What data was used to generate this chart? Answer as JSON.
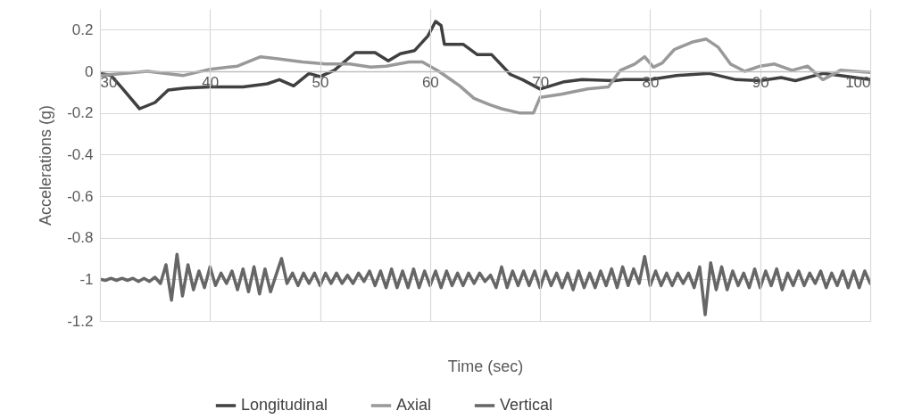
{
  "chart_data": {
    "type": "line",
    "xlabel": "Time (sec)",
    "ylabel": "Accelerations (g)",
    "xlim": [
      30,
      100
    ],
    "xticks": [
      30,
      40,
      50,
      60,
      70,
      80,
      90,
      100
    ],
    "ylim": [
      -1.2,
      0.3
    ],
    "yticks": [
      -1.2,
      -1,
      -0.8,
      -0.6,
      -0.4,
      -0.2,
      0,
      0.2
    ],
    "grid": true,
    "legend": "bottom",
    "series": [
      {
        "name": "Longitudinal",
        "color": "#404040",
        "x": [
          30,
          31,
          32,
          33.6,
          35,
          36.2,
          37.8,
          40,
          43,
          45.2,
          46.3,
          47.6,
          49,
          50,
          51.3,
          53.2,
          55,
          56.2,
          57.3,
          58.6,
          59.8,
          60.5,
          61,
          61.3,
          63,
          64.3,
          65.6,
          67.3,
          68.4,
          70,
          72.2,
          73.8,
          76.8,
          77.6,
          80,
          82.4,
          85.4,
          87.8,
          90,
          91.9,
          93.2,
          95.7,
          97.3,
          100
        ],
        "values": [
          -0.01,
          -0.02,
          -0.08,
          -0.18,
          -0.15,
          -0.09,
          -0.08,
          -0.075,
          -0.075,
          -0.06,
          -0.04,
          -0.07,
          -0.01,
          -0.025,
          0.005,
          0.09,
          0.09,
          0.05,
          0.085,
          0.1,
          0.17,
          0.24,
          0.22,
          0.13,
          0.13,
          0.08,
          0.08,
          -0.015,
          -0.04,
          -0.085,
          -0.05,
          -0.04,
          -0.045,
          -0.04,
          -0.04,
          -0.02,
          -0.01,
          -0.04,
          -0.045,
          -0.03,
          -0.045,
          -0.01,
          -0.02,
          -0.04
        ]
      },
      {
        "name": "Axial",
        "color": "#999999",
        "x": [
          30,
          34.3,
          37.6,
          40,
          42.5,
          44.6,
          46.2,
          48.4,
          50.5,
          52.7,
          54.6,
          56,
          58.1,
          59.3,
          60.8,
          62.7,
          64,
          65.4,
          66.5,
          68.1,
          69.4,
          70,
          71.9,
          74.3,
          76.2,
          77.3,
          78.6,
          79.5,
          80.3,
          81.1,
          82.2,
          83.8,
          85.1,
          86.2,
          87.3,
          88.6,
          90,
          91.3,
          92.9,
          94.3,
          95.7,
          97.3,
          100
        ],
        "values": [
          -0.02,
          0,
          -0.02,
          0.01,
          0.025,
          0.07,
          0.06,
          0.045,
          0.035,
          0.035,
          0.02,
          0.025,
          0.045,
          0.045,
          0,
          -0.07,
          -0.13,
          -0.16,
          -0.18,
          -0.2,
          -0.2,
          -0.125,
          -0.11,
          -0.085,
          -0.075,
          0.005,
          0.035,
          0.07,
          0.02,
          0.04,
          0.105,
          0.14,
          0.155,
          0.115,
          0.035,
          0,
          0.025,
          0.035,
          0.005,
          0.025,
          -0.04,
          0.005,
          -0.005
        ]
      },
      {
        "name": "Vertical",
        "color": "#666666",
        "x": [
          30,
          30.5,
          31,
          31.5,
          32,
          32.5,
          33,
          33.5,
          34,
          34.5,
          35,
          35.5,
          36,
          36.5,
          37,
          37.5,
          38,
          38.5,
          39,
          39.5,
          40,
          40.5,
          41,
          41.5,
          42,
          42.5,
          43,
          43.5,
          44,
          44.5,
          45,
          45.5,
          46,
          46.5,
          47,
          47.5,
          48,
          48.5,
          49,
          49.5,
          50,
          50.5,
          51,
          51.5,
          52,
          52.5,
          53,
          53.5,
          54,
          54.5,
          55,
          55.5,
          56,
          56.5,
          57,
          57.5,
          58,
          58.5,
          59,
          59.5,
          60,
          60.5,
          61,
          61.5,
          62,
          62.5,
          63,
          63.5,
          64,
          64.5,
          65,
          65.5,
          66,
          66.5,
          67,
          67.5,
          68,
          68.5,
          69,
          69.5,
          70,
          70.5,
          71,
          71.5,
          72,
          72.5,
          73,
          73.5,
          74,
          74.5,
          75,
          75.5,
          76,
          76.5,
          77,
          77.5,
          78,
          78.5,
          79,
          79.5,
          80,
          80.5,
          81,
          81.5,
          82,
          82.5,
          83,
          83.5,
          84,
          84.5,
          85,
          85.5,
          86,
          86.5,
          87,
          87.5,
          88,
          88.5,
          89,
          89.5,
          90,
          90.5,
          91,
          91.5,
          92,
          92.5,
          93,
          93.5,
          94,
          94.5,
          95,
          95.5,
          96,
          96.5,
          97,
          97.5,
          98,
          98.5,
          99,
          99.5,
          100
        ],
        "values": [
          -1,
          -1.005,
          -0.995,
          -1.005,
          -0.995,
          -1.005,
          -0.995,
          -1.01,
          -0.995,
          -1.01,
          -0.99,
          -1.02,
          -0.93,
          -1.1,
          -0.88,
          -1.08,
          -0.93,
          -1.05,
          -0.96,
          -1.04,
          -0.94,
          -1.03,
          -0.97,
          -1.02,
          -0.96,
          -1.05,
          -0.95,
          -1.06,
          -0.94,
          -1.07,
          -0.95,
          -1.06,
          -0.98,
          -0.9,
          -1.02,
          -0.97,
          -1.03,
          -0.97,
          -1.02,
          -0.97,
          -1.03,
          -0.97,
          -1.02,
          -0.97,
          -1.02,
          -0.98,
          -1.02,
          -0.97,
          -1.01,
          -0.96,
          -1.03,
          -0.96,
          -1.04,
          -0.95,
          -1.04,
          -0.96,
          -1.04,
          -0.95,
          -1.04,
          -0.96,
          -1.03,
          -0.96,
          -1.04,
          -0.96,
          -1.03,
          -0.97,
          -1.03,
          -0.97,
          -1.02,
          -0.97,
          -1.01,
          -0.98,
          -1.04,
          -0.94,
          -1.04,
          -0.96,
          -1.03,
          -0.96,
          -1.03,
          -0.96,
          -1.04,
          -0.96,
          -1.03,
          -0.97,
          -1.04,
          -0.97,
          -1.05,
          -0.96,
          -1.04,
          -0.97,
          -1.04,
          -0.96,
          -1.03,
          -0.95,
          -1.04,
          -0.94,
          -1.03,
          -0.95,
          -1.02,
          -0.89,
          -1.03,
          -0.96,
          -1.03,
          -0.97,
          -1.03,
          -0.97,
          -1.02,
          -0.97,
          -1.04,
          -0.94,
          -1.17,
          -0.92,
          -1.05,
          -0.94,
          -1.05,
          -0.96,
          -1.03,
          -0.97,
          -1.04,
          -0.95,
          -1.04,
          -0.96,
          -1.03,
          -0.95,
          -1.05,
          -0.97,
          -1.03,
          -0.96,
          -1.03,
          -0.97,
          -1.02,
          -0.96,
          -1.04,
          -0.97,
          -1.03,
          -0.96,
          -1.04,
          -0.96,
          -1.04,
          -0.96,
          -1.02
        ]
      }
    ]
  }
}
